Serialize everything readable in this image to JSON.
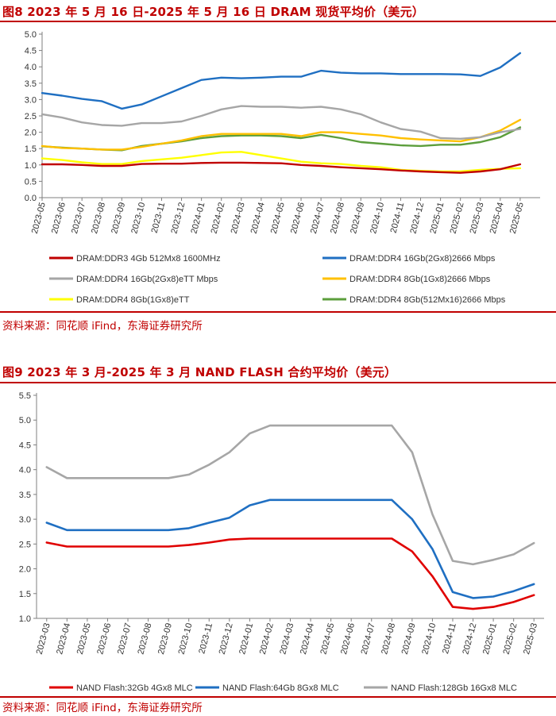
{
  "figures": [
    {
      "title": "图8  2023 年 5 月 16 日-2025 年 5 月 16 日 DRAM 现货平均价（美元）",
      "source": "资料来源：同花顺 iFind，东海证券研究所"
    },
    {
      "title": "图9  2023 年 3 月-2025 年 3 月 NAND FLASH 合约平均价（美元）",
      "source": "资料来源：同花顺 iFind，东海证券研究所"
    }
  ],
  "chart_data": [
    {
      "type": "line",
      "title": "2023年5月16日-2025年5月16日 DRAM 现货平均价（美元）",
      "xlabel": "",
      "ylabel": "",
      "ylim": [
        0.0,
        5.0
      ],
      "yticks": [
        "5.0",
        "4.5",
        "4.0",
        "3.5",
        "3.0",
        "2.5",
        "2.0",
        "1.5",
        "1.0",
        "0.5",
        "0.0"
      ],
      "categories": [
        "2023-05",
        "2023-06",
        "2023-07",
        "2023-08",
        "2023-09",
        "2023-10",
        "2023-11",
        "2023-12",
        "2024-01",
        "2024-02",
        "2024-03",
        "2024-04",
        "2024-05",
        "2024-06",
        "2024-07",
        "2024-08",
        "2024-09",
        "2024-10",
        "2024-11",
        "2024-12",
        "2025-01",
        "2025-02",
        "2025-03",
        "2025-04",
        "2025-05"
      ],
      "legend_position": "bottom",
      "series": [
        {
          "name": "DRAM:DDR3 4Gb 512Mx8 1600MHz",
          "color": "#c00000",
          "values": [
            1.02,
            1.02,
            1.0,
            0.97,
            0.97,
            1.03,
            1.04,
            1.04,
            1.06,
            1.07,
            1.07,
            1.06,
            1.05,
            1.0,
            0.97,
            0.93,
            0.9,
            0.87,
            0.83,
            0.8,
            0.78,
            0.76,
            0.8,
            0.87,
            1.02
          ]
        },
        {
          "name": "DRAM:DDR4 16Gb(2Gx8)2666 Mbps",
          "color": "#1f6fc2",
          "values": [
            3.2,
            3.12,
            3.02,
            2.95,
            2.72,
            2.85,
            3.1,
            3.35,
            3.6,
            3.67,
            3.65,
            3.67,
            3.7,
            3.7,
            3.88,
            3.82,
            3.8,
            3.8,
            3.78,
            3.78,
            3.78,
            3.77,
            3.72,
            3.98,
            4.42
          ]
        },
        {
          "name": "DRAM:DDR4 16Gb(2Gx8)eTT Mbps",
          "color": "#a6a6a6",
          "values": [
            2.55,
            2.45,
            2.3,
            2.22,
            2.2,
            2.28,
            2.28,
            2.33,
            2.5,
            2.7,
            2.8,
            2.78,
            2.78,
            2.75,
            2.78,
            2.7,
            2.55,
            2.3,
            2.1,
            2.02,
            1.82,
            1.8,
            1.85,
            2.0,
            2.1
          ]
        },
        {
          "name": "DRAM:DDR4 8Gb(1Gx8)2666 Mbps",
          "color": "#ffc000",
          "values": [
            1.58,
            1.52,
            1.5,
            1.47,
            1.47,
            1.55,
            1.65,
            1.75,
            1.88,
            1.95,
            1.95,
            1.95,
            1.95,
            1.88,
            2.0,
            2.0,
            1.95,
            1.9,
            1.82,
            1.78,
            1.75,
            1.72,
            1.85,
            2.05,
            2.38
          ]
        },
        {
          "name": "DRAM:DDR4 8Gb(1Gx8)eTT",
          "color": "#ffff00",
          "values": [
            1.2,
            1.15,
            1.08,
            1.03,
            1.03,
            1.12,
            1.17,
            1.22,
            1.3,
            1.38,
            1.4,
            1.3,
            1.2,
            1.1,
            1.05,
            1.03,
            0.97,
            0.93,
            0.85,
            0.82,
            0.8,
            0.8,
            0.85,
            0.88,
            0.9
          ]
        },
        {
          "name": "DRAM:DDR4 8Gb(512Mx16)2666 Mbps",
          "color": "#5c9e3c",
          "values": [
            1.57,
            1.53,
            1.5,
            1.47,
            1.45,
            1.58,
            1.65,
            1.72,
            1.82,
            1.88,
            1.9,
            1.9,
            1.88,
            1.82,
            1.92,
            1.82,
            1.7,
            1.65,
            1.6,
            1.58,
            1.62,
            1.62,
            1.7,
            1.85,
            2.15
          ]
        }
      ]
    },
    {
      "type": "line",
      "title": "2023年3月-2025年3月 NAND FLASH 合约平均价（美元）",
      "xlabel": "",
      "ylabel": "",
      "ylim": [
        1.0,
        5.5
      ],
      "yticks": [
        "5.5",
        "5.0",
        "4.5",
        "4.0",
        "3.5",
        "3.0",
        "2.5",
        "2.0",
        "1.5",
        "1.0"
      ],
      "categories": [
        "2023-03",
        "2023-04",
        "2023-05",
        "2023-06",
        "2023-07",
        "2023-08",
        "2023-09",
        "2023-10",
        "2023-11",
        "2023-12",
        "2024-01",
        "2024-02",
        "2024-03",
        "2024-04",
        "2024-05",
        "2024-06",
        "2024-07",
        "2024-08",
        "2024-09",
        "2024-10",
        "2024-11",
        "2024-12",
        "2025-01",
        "2025-02",
        "2025-03"
      ],
      "legend_position": "bottom",
      "series": [
        {
          "name": "NAND Flash:32Gb 4Gx8 MLC",
          "color": "#e00000",
          "values": [
            2.53,
            2.45,
            2.45,
            2.45,
            2.45,
            2.45,
            2.45,
            2.48,
            2.53,
            2.59,
            2.61,
            2.61,
            2.61,
            2.61,
            2.61,
            2.61,
            2.61,
            2.61,
            2.35,
            1.85,
            1.23,
            1.19,
            1.23,
            1.33,
            1.47
          ]
        },
        {
          "name": "NAND Flash:64Gb 8Gx8 MLC",
          "color": "#1f6fc2",
          "values": [
            2.93,
            2.78,
            2.78,
            2.78,
            2.78,
            2.78,
            2.78,
            2.82,
            2.93,
            3.03,
            3.28,
            3.39,
            3.39,
            3.39,
            3.39,
            3.39,
            3.39,
            3.39,
            3.0,
            2.4,
            1.53,
            1.41,
            1.44,
            1.55,
            1.69
          ]
        },
        {
          "name": "NAND Flash:128Gb 16Gx8 MLC",
          "color": "#a6a6a6",
          "values": [
            4.05,
            3.83,
            3.83,
            3.83,
            3.83,
            3.83,
            3.83,
            3.9,
            4.1,
            4.35,
            4.73,
            4.89,
            4.89,
            4.89,
            4.89,
            4.89,
            4.89,
            4.89,
            4.35,
            3.1,
            2.16,
            2.09,
            2.18,
            2.29,
            2.52
          ]
        }
      ]
    }
  ]
}
